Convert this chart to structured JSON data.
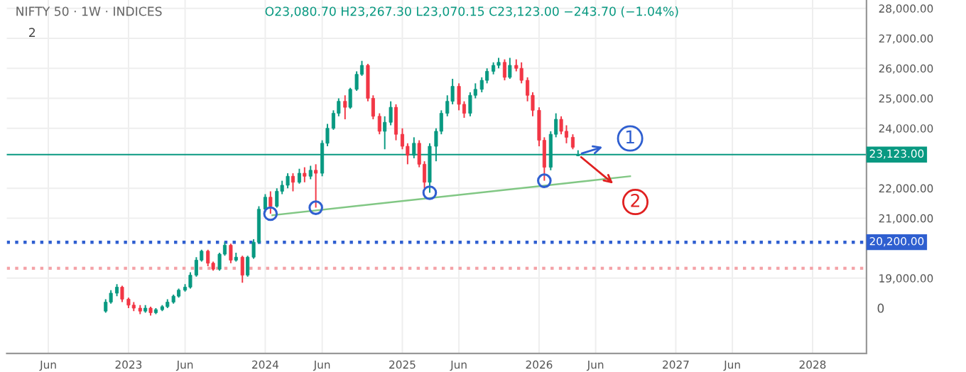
{
  "chart_data": {
    "type": "candlestick",
    "annotations": [
      "NIFTY 50 · 1W · INDICES",
      "O23,080.70 H23,267.30 L23,070.15 C23,123.00 −243.70 (−1.04%)",
      "2",
      "0",
      {
        "text": "1",
        "x": "2026-09-01",
        "y": 23660
      },
      {
        "text": "2",
        "x": "2026-09-15",
        "y": 21540
      }
    ],
    "x": [
      "2022-11-01",
      "2022-11-15",
      "2022-12-01",
      "2022-12-15",
      "2023-01-01",
      "2023-01-15",
      "2023-02-01",
      "2023-02-15",
      "2023-03-01",
      "2023-03-15",
      "2023-04-01",
      "2023-04-15",
      "2023-05-01",
      "2023-05-15",
      "2023-06-01",
      "2023-06-15",
      "2023-07-01",
      "2023-07-15",
      "2023-08-01",
      "2023-08-15",
      "2023-09-01",
      "2023-09-15",
      "2023-10-01",
      "2023-10-15",
      "2023-11-01",
      "2023-11-15",
      "2023-12-01",
      "2023-12-15",
      "2024-01-01",
      "2024-01-15",
      "2024-02-01",
      "2024-02-15",
      "2024-03-01",
      "2024-03-15",
      "2024-04-01",
      "2024-04-15",
      "2024-05-01",
      "2024-05-15",
      "2024-06-01",
      "2024-06-15",
      "2024-07-01",
      "2024-07-15",
      "2024-08-01",
      "2024-08-15",
      "2024-09-01",
      "2024-09-15",
      "2024-10-01",
      "2024-10-15",
      "2024-11-01",
      "2024-11-15",
      "2024-12-01",
      "2024-12-15",
      "2025-01-01",
      "2025-01-15",
      "2025-02-01",
      "2025-02-15",
      "2025-03-01",
      "2025-03-15",
      "2025-04-01",
      "2025-04-15",
      "2025-05-01",
      "2025-05-15",
      "2025-06-01",
      "2025-06-15",
      "2025-07-01",
      "2025-07-15",
      "2025-08-01",
      "2025-08-15",
      "2025-09-01",
      "2025-09-15",
      "2025-10-01",
      "2025-10-15",
      "2025-11-01",
      "2025-11-15",
      "2025-12-01",
      "2025-12-15",
      "2026-01-01",
      "2026-01-15",
      "2026-02-01",
      "2026-02-15",
      "2026-03-01",
      "2026-03-15",
      "2026-04-01",
      "2026-04-15"
    ],
    "ohlc": [
      [
        17900,
        18300,
        17850,
        18200
      ],
      [
        18200,
        18600,
        18150,
        18500
      ],
      [
        18500,
        18800,
        18400,
        18700
      ],
      [
        18700,
        18750,
        18200,
        18300
      ],
      [
        18300,
        18350,
        18000,
        18100
      ],
      [
        18100,
        18200,
        17900,
        18000
      ],
      [
        18000,
        18100,
        17800,
        17900
      ],
      [
        17900,
        18100,
        17850,
        18000
      ],
      [
        18000,
        18050,
        17750,
        17850
      ],
      [
        17850,
        18000,
        17800,
        17950
      ],
      [
        17950,
        18100,
        17900,
        18050
      ],
      [
        18050,
        18300,
        18000,
        18200
      ],
      [
        18200,
        18450,
        18150,
        18400
      ],
      [
        18400,
        18650,
        18350,
        18600
      ],
      [
        18600,
        18800,
        18550,
        18700
      ],
      [
        18700,
        19200,
        18650,
        19100
      ],
      [
        19100,
        19700,
        19050,
        19600
      ],
      [
        19600,
        19950,
        19550,
        19900
      ],
      [
        19900,
        19950,
        19400,
        19500
      ],
      [
        19500,
        19550,
        19250,
        19300
      ],
      [
        19300,
        19850,
        19250,
        19800
      ],
      [
        19800,
        20200,
        19750,
        20100
      ],
      [
        20100,
        20150,
        19500,
        19600
      ],
      [
        19600,
        19850,
        19550,
        19700
      ],
      [
        19700,
        19750,
        18850,
        19100
      ],
      [
        19100,
        19750,
        19050,
        19700
      ],
      [
        19700,
        20300,
        19650,
        20200
      ],
      [
        20200,
        21400,
        20150,
        21300
      ],
      [
        21300,
        21800,
        21200,
        21700
      ],
      [
        21700,
        21900,
        21150,
        21400
      ],
      [
        21400,
        22000,
        21350,
        21900
      ],
      [
        21900,
        22250,
        21800,
        22100
      ],
      [
        22100,
        22500,
        22000,
        22400
      ],
      [
        22400,
        22500,
        21900,
        22200
      ],
      [
        22200,
        22650,
        22150,
        22500
      ],
      [
        22500,
        22700,
        22200,
        22400
      ],
      [
        22400,
        22750,
        22300,
        22600
      ],
      [
        22600,
        22800,
        21350,
        22500
      ],
      [
        22500,
        23600,
        22400,
        23500
      ],
      [
        23500,
        24150,
        23400,
        24000
      ],
      [
        24000,
        24600,
        23950,
        24500
      ],
      [
        24500,
        25000,
        24400,
        24900
      ],
      [
        24900,
        25100,
        24300,
        24700
      ],
      [
        24700,
        25350,
        24650,
        25300
      ],
      [
        25300,
        25900,
        25250,
        25800
      ],
      [
        25800,
        26250,
        25750,
        26100
      ],
      [
        26100,
        26150,
        24900,
        25000
      ],
      [
        25000,
        25100,
        24300,
        24400
      ],
      [
        24400,
        24500,
        23800,
        23900
      ],
      [
        23900,
        24400,
        23300,
        24200
      ],
      [
        24200,
        24900,
        24100,
        24700
      ],
      [
        24700,
        24800,
        23600,
        23800
      ],
      [
        23800,
        24000,
        23300,
        23400
      ],
      [
        23400,
        23500,
        22800,
        23100
      ],
      [
        23100,
        23700,
        23000,
        23500
      ],
      [
        23500,
        23600,
        22700,
        22800
      ],
      [
        22800,
        22900,
        22000,
        22200
      ],
      [
        22200,
        23500,
        21850,
        23400
      ],
      [
        23400,
        24000,
        22900,
        23900
      ],
      [
        23900,
        24600,
        23800,
        24500
      ],
      [
        24500,
        25100,
        24400,
        24900
      ],
      [
        24900,
        25650,
        24800,
        25400
      ],
      [
        25400,
        25500,
        24600,
        24800
      ],
      [
        24800,
        24900,
        24350,
        24500
      ],
      [
        24500,
        25200,
        24400,
        25100
      ],
      [
        25100,
        25500,
        25000,
        25300
      ],
      [
        25300,
        25700,
        25200,
        25600
      ],
      [
        25600,
        26000,
        25500,
        25900
      ],
      [
        25900,
        26200,
        25800,
        26100
      ],
      [
        26100,
        26350,
        26000,
        26200
      ],
      [
        26200,
        26300,
        25600,
        25700
      ],
      [
        25700,
        26350,
        25650,
        26100
      ],
      [
        26100,
        26300,
        25900,
        26000
      ],
      [
        26000,
        26200,
        25500,
        25600
      ],
      [
        25600,
        25700,
        24900,
        25100
      ],
      [
        25100,
        25200,
        24400,
        24600
      ],
      [
        24600,
        24700,
        23400,
        23600
      ],
      [
        23600,
        23700,
        22250,
        22700
      ],
      [
        22700,
        23900,
        22600,
        23800
      ],
      [
        23800,
        24500,
        23700,
        24300
      ],
      [
        24300,
        24400,
        23800,
        23900
      ],
      [
        23900,
        24100,
        23500,
        23700
      ],
      [
        23700,
        23800,
        23300,
        23366.7
      ],
      [
        23080.7,
        23267.3,
        23070.15,
        23123.0
      ]
    ],
    "colors": [
      "#089981",
      "#089981",
      "#089981",
      "#f23645",
      "#f23645",
      "#f23645",
      "#f23645",
      "#089981",
      "#f23645",
      "#089981",
      "#089981",
      "#089981",
      "#089981",
      "#089981",
      "#089981",
      "#089981",
      "#089981",
      "#089981",
      "#f23645",
      "#f23645",
      "#089981",
      "#089981",
      "#f23645",
      "#089981",
      "#f23645",
      "#089981",
      "#089981",
      "#089981",
      "#089981",
      "#f23645",
      "#089981",
      "#089981",
      "#089981",
      "#f23645",
      "#089981",
      "#f23645",
      "#089981",
      "#f23645",
      "#089981",
      "#089981",
      "#089981",
      "#089981",
      "#f23645",
      "#089981",
      "#089981",
      "#089981",
      "#f23645",
      "#f23645",
      "#f23645",
      "#089981",
      "#089981",
      "#f23645",
      "#f23645",
      "#f23645",
      "#089981",
      "#f23645",
      "#f23645",
      "#089981",
      "#089981",
      "#089981",
      "#089981",
      "#089981",
      "#f23645",
      "#f23645",
      "#089981",
      "#089981",
      "#089981",
      "#089981",
      "#089981",
      "#089981",
      "#f23645",
      "#089981",
      "#f23645",
      "#f23645",
      "#f23645",
      "#f23645",
      "#f23645",
      "#f23645",
      "#089981",
      "#089981",
      "#f23645",
      "#f23645",
      "#f23645",
      "#089981"
    ],
    "series": [
      {
        "type": "line",
        "color": "#81c784",
        "x": [
          "2024-01-20",
          "2026-09-01"
        ],
        "values": [
          21100,
          22400
        ]
      },
      {
        "type": "scatter",
        "color": "#2f5fd0",
        "marker": "circle",
        "x": [
          "2024-01-15",
          "2024-05-15",
          "2025-03-15",
          "2026-01-15"
        ],
        "values": [
          21150,
          21350,
          21850,
          22250
        ]
      }
    ],
    "ref_lines": [
      {
        "axis": "y",
        "value": 23123,
        "label": "23,123.00",
        "color": "#089981",
        "line_style": "solid"
      },
      {
        "axis": "y",
        "value": 20200,
        "label": "20,200.00",
        "color": "#2f5fd0",
        "line_style": "dotted"
      },
      {
        "axis": "y",
        "value": 19330,
        "color": "#f4a3a8",
        "line_style": "dotted"
      }
    ],
    "xlim": [
      "2022-02-10",
      "2028-05-24"
    ],
    "xticks": [
      {
        "value": "2022-06-01",
        "label": "Jun"
      },
      {
        "value": "2023-01-01",
        "label": "2023"
      },
      {
        "value": "2023-06-01",
        "label": "Jun"
      },
      {
        "value": "2024-01-01",
        "label": "2024"
      },
      {
        "value": "2024-06-01",
        "label": "Jun"
      },
      {
        "value": "2025-01-01",
        "label": "2025"
      },
      {
        "value": "2025-06-01",
        "label": "Jun"
      },
      {
        "value": "2026-01-01",
        "label": "2026"
      },
      {
        "value": "2026-06-01",
        "label": "Jun"
      },
      {
        "value": "2027-01-01",
        "label": "2027"
      },
      {
        "value": "2027-06-01",
        "label": "Jun"
      },
      {
        "value": "2028-01-01",
        "label": "2028"
      }
    ],
    "ylim": [
      16490,
      28280
    ],
    "yticks": [
      {
        "value": 19000,
        "label": "19,000.00"
      },
      {
        "value": 21000,
        "label": "21,000.00"
      },
      {
        "value": 22000,
        "label": "22,000.00"
      },
      {
        "value": 24000,
        "label": "24,000.00"
      },
      {
        "value": 25000,
        "label": "25,000.00"
      },
      {
        "value": 26000,
        "label": "26,000.00"
      },
      {
        "value": 27000,
        "label": "27,000.00"
      },
      {
        "value": 28000,
        "label": "28,000.00"
      }
    ],
    "grid": true
  }
}
